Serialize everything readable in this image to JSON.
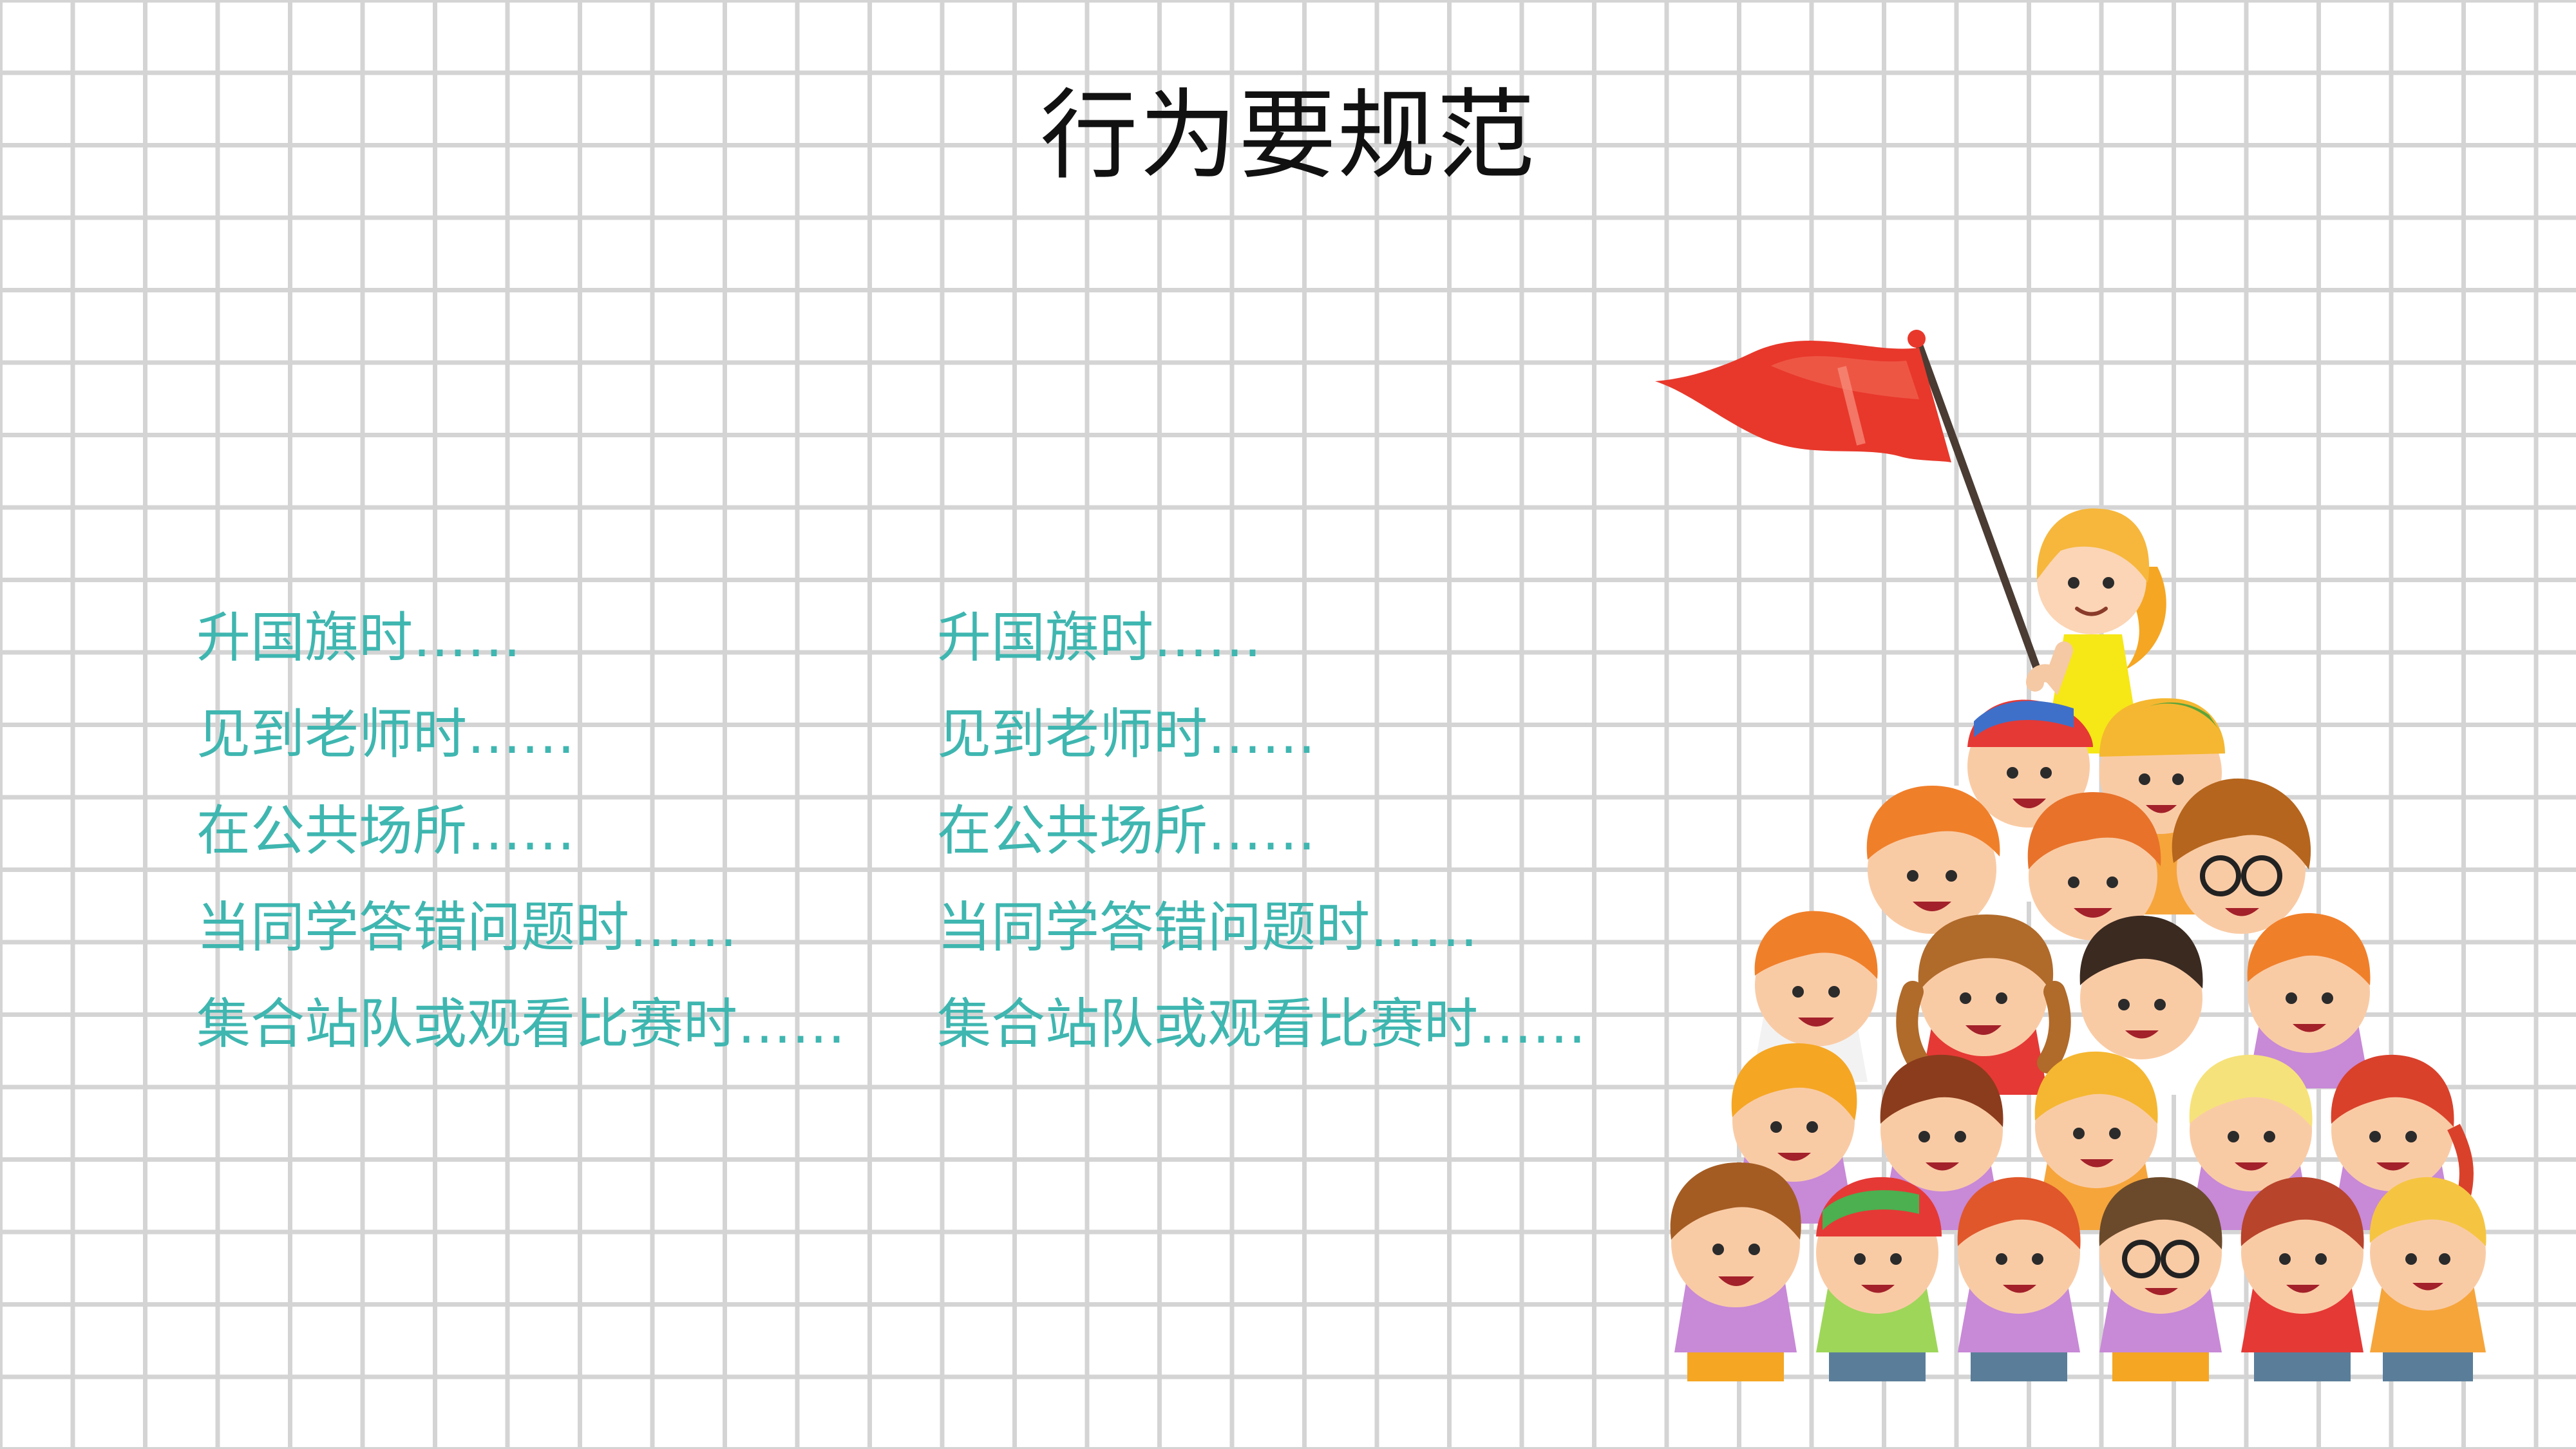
{
  "title": "行为要规范",
  "columns": [
    {
      "items": [
        "升国旗时……",
        "见到老师时……",
        "在公共场所……",
        "当同学答错问题时……",
        "集合站队或观看比赛时……"
      ]
    },
    {
      "items": [
        "升国旗时……",
        "见到老师时……",
        "在公共场所……",
        "当同学答错问题时……",
        "集合站队或观看比赛时……"
      ]
    }
  ],
  "colors": {
    "grid_line": "#d4d4d4",
    "title": "#111111",
    "item_text": "#3fb6b0",
    "flag": "#e8382b"
  },
  "illustration": {
    "icon": "kids-pyramid-with-flag-illustration"
  }
}
